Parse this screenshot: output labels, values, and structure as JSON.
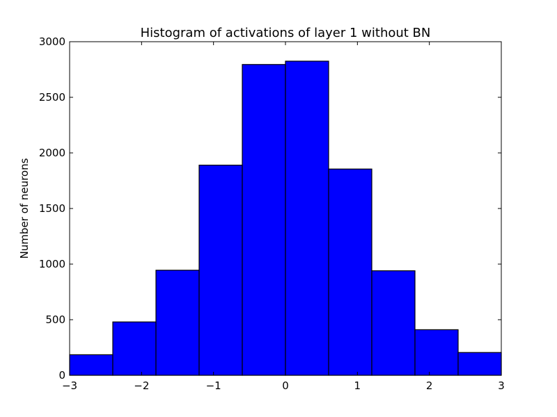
{
  "chart_data": {
    "type": "bar",
    "title": "Histogram of activations of layer 1  without BN",
    "xlabel": "",
    "ylabel": "Number of neurons",
    "xlim": [
      -3,
      3
    ],
    "ylim": [
      0,
      3000
    ],
    "grid": false,
    "legend": "none",
    "bar_color": "#0000ff",
    "edge_color": "#000000",
    "bins": [
      {
        "x0": -3.0,
        "x1": -2.4,
        "count": 185
      },
      {
        "x0": -2.4,
        "x1": -1.8,
        "count": 480
      },
      {
        "x0": -1.8,
        "x1": -1.2,
        "count": 945
      },
      {
        "x0": -1.2,
        "x1": -0.6,
        "count": 1890
      },
      {
        "x0": -0.6,
        "x1": 0.0,
        "count": 2795
      },
      {
        "x0": 0.0,
        "x1": 0.6,
        "count": 2825
      },
      {
        "x0": 0.6,
        "x1": 1.2,
        "count": 1855
      },
      {
        "x0": 1.2,
        "x1": 1.8,
        "count": 940
      },
      {
        "x0": 1.8,
        "x1": 2.4,
        "count": 410
      },
      {
        "x0": 2.4,
        "x1": 3.0,
        "count": 205
      }
    ],
    "xticks": [
      {
        "value": -3,
        "label": "−3"
      },
      {
        "value": -2,
        "label": "−2"
      },
      {
        "value": -1,
        "label": "−1"
      },
      {
        "value": 0,
        "label": "0"
      },
      {
        "value": 1,
        "label": "1"
      },
      {
        "value": 2,
        "label": "2"
      },
      {
        "value": 3,
        "label": "3"
      }
    ],
    "yticks": [
      {
        "value": 0,
        "label": "0"
      },
      {
        "value": 500,
        "label": "500"
      },
      {
        "value": 1000,
        "label": "1000"
      },
      {
        "value": 1500,
        "label": "1500"
      },
      {
        "value": 2000,
        "label": "2000"
      },
      {
        "value": 2500,
        "label": "2500"
      },
      {
        "value": 3000,
        "label": "3000"
      }
    ]
  }
}
